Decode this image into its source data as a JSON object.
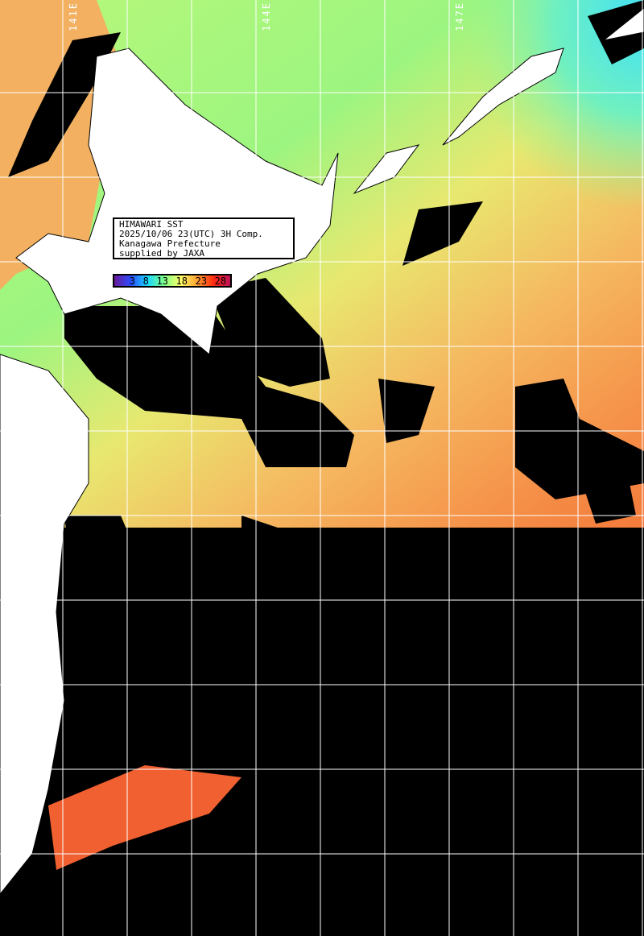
{
  "info_box": {
    "line1": "HIMAWARI SST",
    "line2": "2025/10/06 23(UTC) 3H Comp.",
    "line3": "Kanagawa Prefecture",
    "line4": "supplied by JAXA"
  },
  "color_scale": {
    "ticks": [
      "3",
      "8",
      "13",
      "18",
      "23",
      "28"
    ],
    "colors": [
      "#6a1a9a",
      "#2a4cff",
      "#18d8ff",
      "#7dff8a",
      "#ffff66",
      "#ffa030",
      "#ff2a10",
      "#c0105a"
    ]
  },
  "longitude_labels": [
    "141E",
    "144E",
    "147E"
  ],
  "colors": {
    "land": "#ffffff",
    "cloud": "#000000",
    "grid": "#ffffff"
  }
}
